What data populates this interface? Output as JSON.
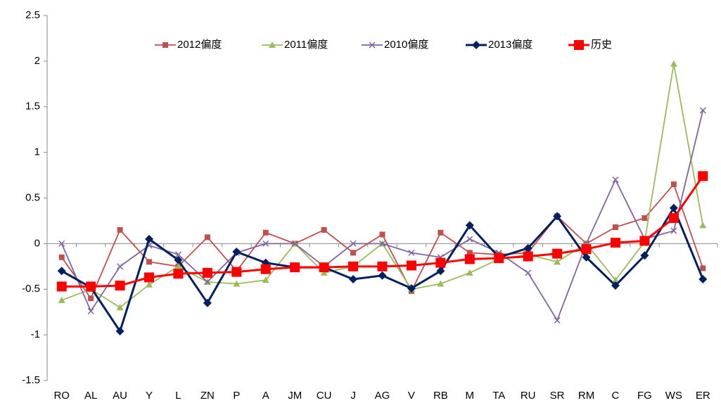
{
  "chart_data": {
    "type": "line",
    "categories": [
      "RO",
      "AL",
      "AU",
      "Y",
      "L",
      "ZN",
      "P",
      "A",
      "JM",
      "CU",
      "J",
      "AG",
      "V",
      "RB",
      "M",
      "TA",
      "RU",
      "SR",
      "RM",
      "C",
      "FG",
      "WS",
      "ER"
    ],
    "ylim": [
      -1.5,
      2.5
    ],
    "yticks": [
      -1.5,
      -1,
      -0.5,
      0,
      0.5,
      1,
      1.5,
      2,
      2.5
    ],
    "grid": false,
    "legend": "top",
    "series": [
      {
        "name": "2012偏度",
        "color": "#C0504D",
        "marker": "square",
        "values": [
          -0.15,
          -0.6,
          0.15,
          -0.2,
          -0.25,
          0.07,
          -0.3,
          0.12,
          0,
          0.15,
          -0.1,
          0.1,
          -0.52,
          0.12,
          -0.1,
          -0.12,
          -0.1,
          0.3,
          0,
          0.18,
          0.28,
          0.65,
          -0.27
        ]
      },
      {
        "name": "2011偏度",
        "color": "#9BBB59",
        "marker": "triangle",
        "values": [
          -0.62,
          -0.5,
          -0.7,
          -0.45,
          -0.25,
          -0.42,
          -0.44,
          -0.4,
          0,
          -0.32,
          -0.25,
          0,
          -0.5,
          -0.44,
          -0.32,
          -0.17,
          -0.12,
          -0.2,
          0,
          -0.4,
          0.02,
          1.97,
          0.2
        ]
      },
      {
        "name": "2010偏度",
        "color": "#8064A2",
        "marker": "x",
        "values": [
          0,
          -0.74,
          -0.25,
          -0.02,
          -0.12,
          -0.42,
          -0.1,
          0,
          0,
          -0.25,
          0,
          0,
          -0.1,
          -0.15,
          0.05,
          -0.1,
          -0.32,
          -0.84,
          0,
          0.7,
          0.05,
          0.14,
          1.46
        ]
      },
      {
        "name": "2013偏度",
        "color": "#002060",
        "marker": "diamond",
        "values": [
          -0.3,
          -0.48,
          -0.96,
          0.05,
          -0.18,
          -0.65,
          -0.09,
          -0.21,
          -0.26,
          -0.26,
          -0.39,
          -0.35,
          -0.49,
          -0.3,
          0.2,
          -0.15,
          -0.05,
          0.3,
          -0.15,
          -0.46,
          -0.13,
          0.39,
          -0.39
        ]
      },
      {
        "name": "历史",
        "color": "#FF0000",
        "marker": "big-square",
        "values": [
          -0.47,
          -0.47,
          -0.46,
          -0.37,
          -0.33,
          -0.32,
          -0.31,
          -0.28,
          -0.26,
          -0.26,
          -0.25,
          -0.25,
          -0.24,
          -0.21,
          -0.17,
          -0.16,
          -0.14,
          -0.11,
          -0.06,
          0.01,
          0.03,
          0.28,
          0.74
        ]
      }
    ]
  }
}
